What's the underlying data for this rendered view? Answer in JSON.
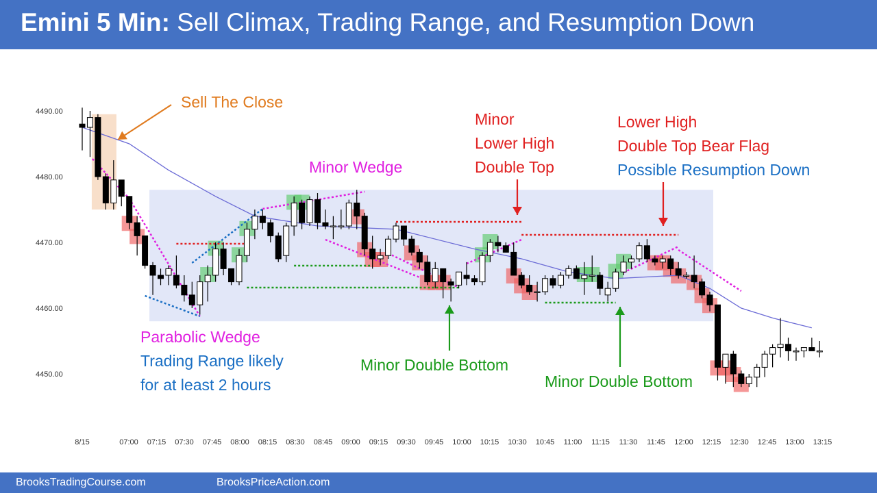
{
  "header": {
    "title_bold": "Emini 5 Min:",
    "title_rest": " Sell Climax, Trading Range, and Resumption Down"
  },
  "footer": {
    "link_left": "BrooksTradingCourse.com",
    "link_right": "BrooksPriceAction.com"
  },
  "colors": {
    "header_bg": "#4472c4",
    "bull_signal": "#5ecb6b",
    "bear_signal": "#f06060",
    "range_box": "#dfe4f7",
    "moving_average": "#6b6bd6",
    "annotation_orange": "#e07b1f",
    "annotation_red": "#e02020",
    "annotation_magenta": "#e020e0",
    "annotation_blue": "#1a6fc4",
    "annotation_green": "#1a9a1a"
  },
  "chart_data": {
    "type": "candlestick",
    "title": "Emini 5 Min: Sell Climax, Trading Range, and Resumption Down",
    "ylim": [
      4443,
      4495
    ],
    "y_ticks": [
      "4490.00",
      "4480.00",
      "4470.00",
      "4460.00",
      "4450.00"
    ],
    "x_ticks": [
      "8/15",
      "07:00",
      "07:15",
      "07:30",
      "07:45",
      "08:00",
      "08:15",
      "08:30",
      "08:45",
      "09:00",
      "09:15",
      "09:30",
      "09:45",
      "10:00",
      "10:15",
      "10:30",
      "10:45",
      "11:00",
      "11:15",
      "11:30",
      "11:45",
      "12:00",
      "12:15",
      "12:30",
      "12:45",
      "13:00",
      "13:15"
    ],
    "candles": [
      [
        4488,
        4490.5,
        4484,
        4487.5
      ],
      [
        4487.5,
        4490,
        4483,
        4489
      ],
      [
        4489,
        4489.5,
        4479.5,
        4480
      ],
      [
        4480,
        4480.5,
        4475,
        4476
      ],
      [
        4476,
        4482.5,
        4475,
        4479.5
      ],
      [
        4479.5,
        4479.5,
        4475.5,
        4477
      ],
      [
        4477,
        4477,
        4472,
        4473
      ],
      [
        4473,
        4474,
        4468,
        4471
      ],
      [
        4471,
        4471,
        4466,
        4466.5
      ],
      [
        4466.5,
        4467,
        4462,
        4465
      ],
      [
        4465,
        4466,
        4463.5,
        4464.5
      ],
      [
        4465,
        4466.5,
        4463.5,
        4466
      ],
      [
        4465,
        4468,
        4463,
        4463.5
      ],
      [
        4463.5,
        4465,
        4461,
        4462
      ],
      [
        4462,
        4464,
        4460,
        4460.5
      ],
      [
        4460.5,
        4465,
        4459,
        4464
      ],
      [
        4464,
        4466.5,
        4461,
        4465
      ],
      [
        4465,
        4470,
        4464,
        4469
      ],
      [
        4469,
        4470,
        4465,
        4466
      ],
      [
        4466,
        4466,
        4463.5,
        4464
      ],
      [
        4464,
        4469,
        4463.5,
        4468
      ],
      [
        4468,
        4473,
        4467,
        4472
      ],
      [
        4472,
        4475,
        4470.5,
        4474
      ],
      [
        4474,
        4475,
        4472,
        4473
      ],
      [
        4473,
        4473.5,
        4470,
        4471
      ],
      [
        4471,
        4471.5,
        4467,
        4467.5
      ],
      [
        4468,
        4473,
        4467,
        4472.5
      ],
      [
        4472.5,
        4477,
        4471,
        4476
      ],
      [
        4476,
        4476.5,
        4472,
        4473
      ],
      [
        4473,
        4477,
        4472.5,
        4476.5
      ],
      [
        4476.5,
        4477.5,
        4472,
        4473
      ],
      [
        4473,
        4475,
        4472,
        4472.5
      ],
      [
        4472.5,
        4474,
        4470.5,
        4472.5
      ],
      [
        4472.5,
        4475,
        4472,
        4472.5
      ],
      [
        4472.5,
        4476.5,
        4472,
        4476
      ],
      [
        4476,
        4478,
        4472,
        4474
      ],
      [
        4474,
        4474.5,
        4468,
        4469
      ],
      [
        4469,
        4471,
        4466,
        4467.5
      ],
      [
        4467.5,
        4469,
        4466.5,
        4468
      ],
      [
        4468,
        4471,
        4467.5,
        4470.5
      ],
      [
        4470.5,
        4473,
        4470,
        4472.5
      ],
      [
        4472.5,
        4472.5,
        4469.5,
        4470.5
      ],
      [
        4470.5,
        4471,
        4468,
        4468.5
      ],
      [
        4468.5,
        4469,
        4466,
        4467
      ],
      [
        4467,
        4468,
        4463.5,
        4464
      ],
      [
        4464,
        4467,
        4463,
        4466
      ],
      [
        4466,
        4466,
        4461.5,
        4464
      ],
      [
        4464,
        4464.5,
        4461,
        4463.5
      ],
      [
        4463.5,
        4465.5,
        4463,
        4465.5
      ],
      [
        4465,
        4467,
        4463.5,
        4464.5
      ],
      [
        4464.5,
        4465,
        4463.5,
        4464
      ],
      [
        4464,
        4468.5,
        4463.5,
        4468
      ],
      [
        4468,
        4470.5,
        4467,
        4470
      ],
      [
        4470,
        4471,
        4468.5,
        4469.5
      ],
      [
        4469.5,
        4470,
        4468.5,
        4468.5
      ],
      [
        4468.5,
        4470,
        4465,
        4465
      ],
      [
        4465,
        4465.5,
        4463,
        4463.5
      ],
      [
        4463.5,
        4465,
        4462,
        4462.5
      ],
      [
        4462.5,
        4464,
        4461,
        4462.5
      ],
      [
        4462.5,
        4465,
        4462,
        4464.5
      ],
      [
        4464.5,
        4465,
        4463,
        4463.5
      ],
      [
        4463.5,
        4465.5,
        4463,
        4465
      ],
      [
        4465,
        4466.5,
        4464.5,
        4466
      ],
      [
        4466,
        4466.5,
        4464.5,
        4464.5
      ],
      [
        4464.5,
        4467,
        4462,
        4465
      ],
      [
        4465,
        4468,
        4464,
        4465
      ],
      [
        4465,
        4465.5,
        4462,
        4463
      ],
      [
        4462,
        4464,
        4461,
        4463
      ],
      [
        4463,
        4466,
        4462.5,
        4465.5
      ],
      [
        4465.5,
        4468,
        4465,
        4467
      ],
      [
        4467,
        4468,
        4466,
        4467.5
      ],
      [
        4467.5,
        4470,
        4467,
        4469.5
      ],
      [
        4469.5,
        4470.5,
        4467,
        4467.5
      ],
      [
        4467.5,
        4468,
        4466.5,
        4467
      ],
      [
        4467,
        4468,
        4466,
        4467.5
      ],
      [
        4467.5,
        4468,
        4465,
        4466
      ],
      [
        4466,
        4467,
        4464.5,
        4465
      ],
      [
        4465,
        4465.5,
        4464.5,
        4465
      ],
      [
        4465,
        4468,
        4463,
        4464
      ],
      [
        4464,
        4464.5,
        4461.5,
        4462
      ],
      [
        4462,
        4462.5,
        4459.5,
        4460.5
      ],
      [
        4460.5,
        4460.5,
        4449,
        4451
      ],
      [
        4451,
        4453,
        4448.5,
        4453
      ],
      [
        4453,
        4453.5,
        4448,
        4450
      ],
      [
        4450,
        4450.5,
        4448,
        4448.5
      ],
      [
        4448.5,
        4450,
        4448,
        4449.5
      ],
      [
        4449.5,
        4451.5,
        4448,
        4451
      ],
      [
        4451,
        4453.5,
        4449.5,
        4453
      ],
      [
        4453,
        4454.5,
        4451,
        4454
      ],
      [
        4454,
        4458.5,
        4452.5,
        4454.5
      ],
      [
        4454.5,
        4455.5,
        4452,
        4453.5
      ],
      [
        4453.5,
        4454,
        4452,
        4453.5
      ],
      [
        4453.5,
        4454,
        4452.5,
        4454
      ],
      [
        4454,
        4455.5,
        4453.5,
        4453.5
      ],
      [
        4453.5,
        4455,
        4452.5,
        4453.5
      ]
    ],
    "moving_average": [
      [
        0,
        4487.5
      ],
      [
        6,
        4485
      ],
      [
        11,
        4481
      ],
      [
        17,
        4477
      ],
      [
        22,
        4474
      ],
      [
        30,
        4472.5
      ],
      [
        40,
        4472
      ],
      [
        50,
        4469
      ],
      [
        56,
        4467.5
      ],
      [
        62,
        4465.5
      ],
      [
        68,
        4464.5
      ],
      [
        76,
        4465
      ],
      [
        80,
        4463
      ],
      [
        84,
        4460
      ],
      [
        88,
        4458.5
      ],
      [
        93,
        4457
      ]
    ],
    "trading_range": {
      "from_bar": 9,
      "to_bar": 80,
      "low": 4458,
      "high": 4478
    },
    "annotations": [
      {
        "text": "Sell The Close",
        "color": "#e07b1f"
      },
      {
        "text": "Minor Wedge",
        "color": "#e020e0"
      },
      {
        "text": "Minor",
        "color": "#e02020"
      },
      {
        "text": "Lower High",
        "color": "#e02020"
      },
      {
        "text": "Double Top",
        "color": "#e02020"
      },
      {
        "text": "Lower High",
        "color": "#e02020"
      },
      {
        "text": "Double Top Bear Flag",
        "color": "#e02020"
      },
      {
        "text": "Possible Resumption Down",
        "color": "#1a6fc4"
      },
      {
        "text": "Parabolic Wedge",
        "color": "#e020e0"
      },
      {
        "text": "Trading Range likely",
        "color": "#1a6fc4"
      },
      {
        "text": "for at least 2 hours",
        "color": "#1a6fc4"
      },
      {
        "text": "Minor Double Bottom",
        "color": "#1a9a1a"
      },
      {
        "text": "Minor Double Bottom",
        "color": "#1a9a1a"
      }
    ],
    "bull_signal_bars": [
      16,
      17,
      20,
      21,
      27,
      28,
      51,
      52,
      64,
      65,
      68,
      69
    ],
    "bear_signal_bars": [
      6,
      7,
      35,
      36,
      37,
      38,
      42,
      43,
      44,
      45,
      46,
      55,
      56,
      57,
      73,
      74,
      75,
      76,
      78,
      79,
      80,
      81,
      82,
      83,
      84
    ],
    "grid": false,
    "legend": "none"
  }
}
